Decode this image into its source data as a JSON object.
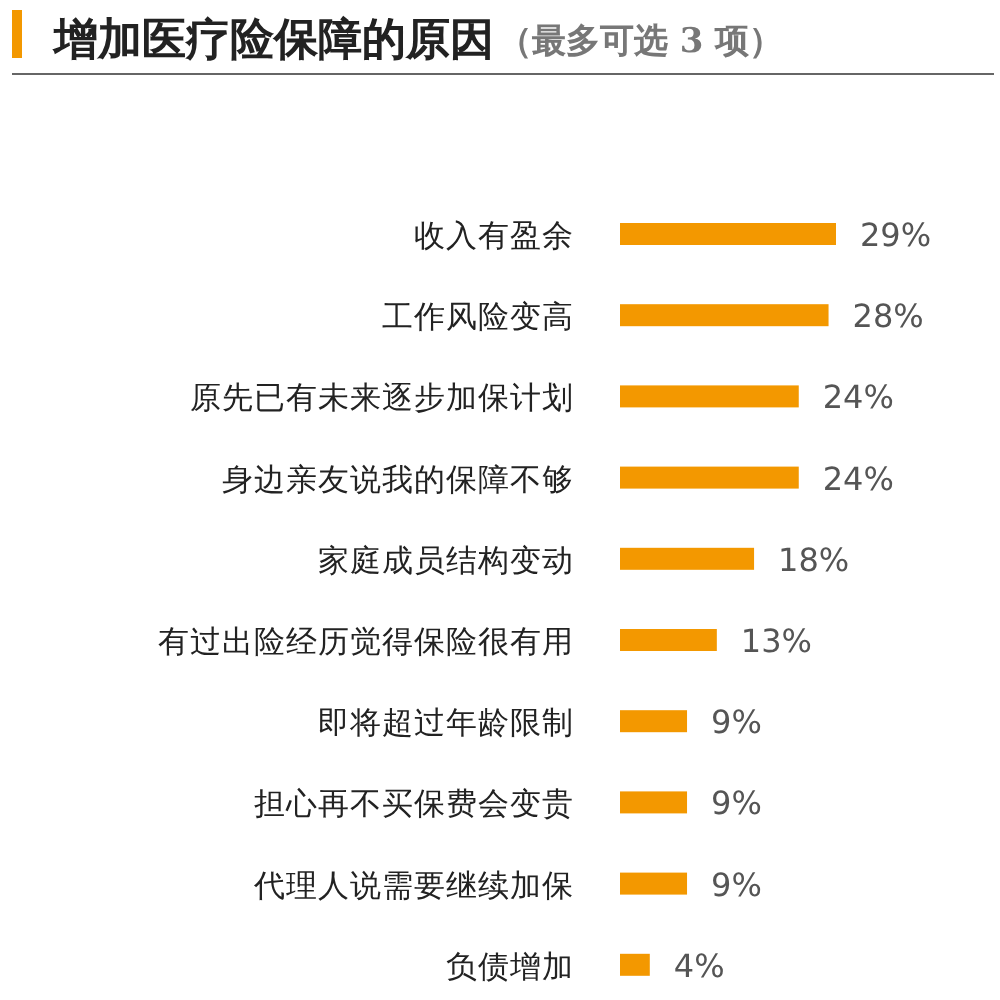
{
  "chart_data": {
    "type": "bar",
    "orientation": "horizontal",
    "title": "增加医疗险保障的原因",
    "subtitle": "（最多可选 3 项）",
    "categories": [
      "收入有盈余",
      "工作风险变高",
      "原先已有未来逐步加保计划",
      "身边亲友说我的保障不够",
      "家庭成员结构变动",
      "有过出险经历觉得保险很有用",
      "即将超过年龄限制",
      "担心再不买保费会变贵",
      "代理人说需要继续加保",
      "负债增加"
    ],
    "values": [
      29,
      28,
      24,
      24,
      18,
      13,
      9,
      9,
      9,
      4
    ],
    "value_labels": [
      "29%",
      "28%",
      "24%",
      "24%",
      "18%",
      "13%",
      "9%",
      "9%",
      "9%",
      "4%"
    ],
    "color": "#f39800"
  }
}
